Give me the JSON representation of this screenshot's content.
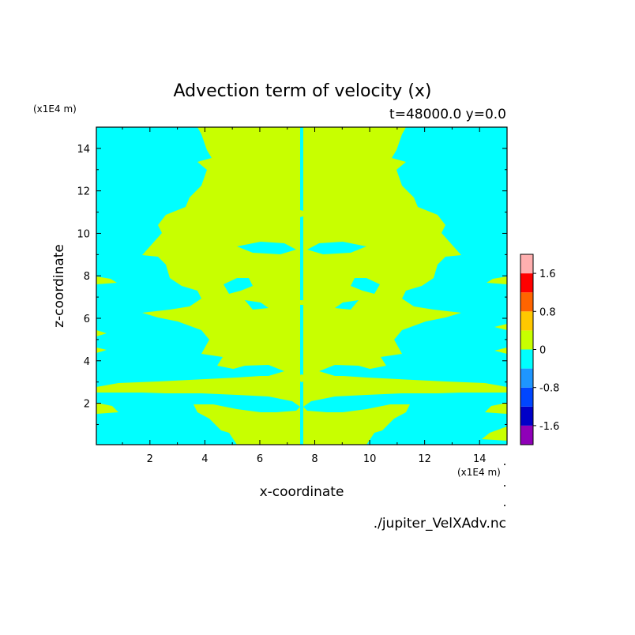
{
  "chart_data": {
    "type": "heatmap",
    "title": "Advection term of velocity (x)",
    "subtitle": "t=48000.0 y=0.0",
    "xlabel": "x-coordinate",
    "ylabel": "z-coordinate",
    "x_unit": "(x1E4 m)",
    "y_unit": "(x1E4 m)",
    "xlim": [
      0.05,
      15.0
    ],
    "ylim": [
      0.05,
      15.0
    ],
    "x_ticks": [
      2,
      4,
      6,
      8,
      10,
      12,
      14
    ],
    "y_ticks": [
      2,
      4,
      6,
      8,
      10,
      12,
      14
    ],
    "x_tick_labels": [
      "2",
      "4",
      "6",
      "8",
      "10",
      "12",
      "14"
    ],
    "y_tick_labels": [
      "2",
      "4",
      "6",
      "8",
      "10",
      "12",
      "14"
    ],
    "colorbar": {
      "levels": [
        -2.0,
        -1.6,
        -1.2,
        -0.8,
        -0.4,
        0.0,
        0.4,
        0.8,
        1.2,
        1.6,
        2.0
      ],
      "colors": [
        "#8f00b8",
        "#0000c8",
        "#0046ff",
        "#1e96ff",
        "#00ffff",
        "#c8ff00",
        "#ffc800",
        "#ff6400",
        "#ff0000",
        "#ffafaf"
      ],
      "tick_values": [
        -1.6,
        -0.8,
        0,
        0.8,
        1.6
      ],
      "tick_labels": [
        "-1.6",
        "-0.8",
        "0",
        "0.8",
        "1.6"
      ]
    },
    "dominant_colors": {
      "negative_band": "#00ffff",
      "positive_band": "#c8ff00"
    },
    "source_file": "./jupiter_VelXAdv.nc"
  }
}
